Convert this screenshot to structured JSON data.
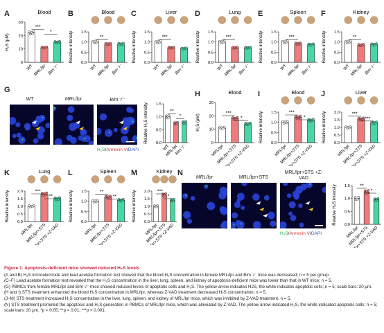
{
  "panels": {
    "A": {
      "label": "A",
      "title": "Blood",
      "ylabel": "H₂S (μM)",
      "yticks": [
        "0",
        "10",
        "20",
        "30"
      ],
      "xticks": [
        "WT",
        "MRL/lpr",
        "Bim⁻/⁻"
      ],
      "sig": [
        "***",
        "*"
      ]
    },
    "B": {
      "label": "B",
      "title": "Blood",
      "ylabel": "Relative intensity",
      "yticks": [
        "0.0",
        "0.5",
        "1.0",
        "1.5"
      ],
      "xticks": [
        "WT",
        "MRL/lpr",
        "Bim⁻/⁻"
      ],
      "sig": [
        "**"
      ]
    },
    "C": {
      "label": "C",
      "title": "Liver",
      "ylabel": "Relative intensity",
      "yticks": [
        "0.0",
        "0.5",
        "1.0",
        "1.5"
      ],
      "xticks": [
        "WT",
        "MRL/lpr",
        "Bim⁻/⁻"
      ],
      "sig": [
        "***"
      ]
    },
    "D": {
      "label": "D",
      "title": "Lung",
      "ylabel": "Relative intensity",
      "yticks": [
        "0.0",
        "0.5",
        "1.0",
        "1.5"
      ],
      "xticks": [
        "WT",
        "MRL/lpr",
        "Bim⁻/⁻"
      ],
      "sig": [
        "***"
      ]
    },
    "E": {
      "label": "E",
      "title": "Spleen",
      "ylabel": "Relative intensity",
      "yticks": [
        "0.0",
        "0.5",
        "1.0",
        "1.5"
      ],
      "xticks": [
        "WT",
        "MRL/lpr",
        "Bim⁻/⁻"
      ],
      "sig": [
        "***"
      ]
    },
    "F": {
      "label": "F",
      "title": "Kidney",
      "ylabel": "Relative intensity",
      "yticks": [
        "0.0",
        "0.5",
        "1.0",
        "1.5"
      ],
      "xticks": [
        "WT",
        "MRL/lpr",
        "Bim⁻/⁻"
      ],
      "sig": [
        "**"
      ]
    },
    "G": {
      "label": "G",
      "images": [
        "WT",
        "MRL/lpr",
        "Bim⁻/⁻"
      ],
      "legend_h2s": "H₂S",
      "legend_annexin": "Annexin V",
      "legend_dapi": "DAPI",
      "ylabel": "Relative H₂S intensity",
      "yticks": [
        "0.0",
        "0.5",
        "1.0",
        "1.5"
      ],
      "xticks": [
        "WT",
        "MRL/lpr",
        "Bim⁻/⁻"
      ],
      "sig": [
        "**",
        "*"
      ]
    },
    "H": {
      "label": "H",
      "title": "Blood",
      "ylabel": "H₂S (μM)",
      "yticks": [
        "0",
        "10",
        "20",
        "30"
      ],
      "xticks": [
        "MRL/lpr",
        "MRL/lpr+STS",
        "MRL/lpr+STS +Z-VAD"
      ],
      "sig": [
        "***",
        "*"
      ]
    },
    "I": {
      "label": "I",
      "title": "Blood",
      "ylabel": "Relative intensity",
      "yticks": [
        "0.0",
        "0.5",
        "1.0",
        "1.5"
      ],
      "xticks": [
        "MRL/lpr",
        "MRL/lpr+STS",
        "MRL/lpr+STS +Z-VAD"
      ],
      "sig": [
        "***",
        "*"
      ]
    },
    "J": {
      "label": "J",
      "title": "Liver",
      "ylabel": "Relative intensity",
      "yticks": [
        "0.0",
        "0.5",
        "1.0",
        "1.5",
        "2.0"
      ],
      "xticks": [
        "MRL/lpr",
        "MRL/lpr+STS",
        "MRL/lpr+STS +Z-VAD"
      ],
      "sig": [
        "***",
        "***"
      ]
    },
    "K": {
      "label": "K",
      "title": "Lung",
      "ylabel": "Relative intensity",
      "yticks": [
        "0.0",
        "0.5",
        "1.0",
        "1.5",
        "2.0"
      ],
      "xticks": [
        "MRL/lpr",
        "MRL/lpr+STS",
        "MRL/lpr+STS +Z-VAD"
      ],
      "sig": [
        "***",
        "**"
      ]
    },
    "L": {
      "label": "L",
      "title": "Spleen",
      "ylabel": "Relative intensity",
      "yticks": [
        "0.0",
        "0.5",
        "1.0",
        "1.5"
      ],
      "xticks": [
        "MRL/lpr",
        "MRL/lpr+STS",
        "MRL/lpr+STS +Z-VAD"
      ],
      "sig": [
        "**",
        "**"
      ]
    },
    "M": {
      "label": "M",
      "title": "Kidney",
      "ylabel": "Relative intensity",
      "yticks": [
        "0.0",
        "0.5",
        "1.0",
        "1.5",
        "2.0"
      ],
      "xticks": [
        "MRL/lpr",
        "MRL/lpr+STS",
        "MRL/lpr+STS +Z-VAD"
      ],
      "sig": [
        "***",
        "*"
      ]
    },
    "N": {
      "label": "N",
      "images": [
        "MRL/lpr",
        "MRL/lpr+STS",
        "MRL/lpr+STS +Z-VAD"
      ],
      "legend_h2s": "H₂S",
      "legend_annexin": "Annexin V",
      "legend_dapi": "DAPI",
      "ylabel": "Relative H₂S intensity",
      "yticks": [
        "0.0",
        "0.5",
        "1.0",
        "1.5"
      ],
      "xticks": [
        "MRL/lpr",
        "MRL/lpr+STS",
        "MRL/lpr+STS +Z-VAD"
      ],
      "sig": [
        "**",
        "*"
      ]
    }
  },
  "colors": {
    "wt": "#ffffff",
    "mrl": "#ef7b7b",
    "bim": "#48d6a4",
    "sts": "#ef7b7b",
    "zvad": "#48d6a4",
    "caption_title": "#c8243b"
  },
  "chart_data": [
    {
      "panel": "A",
      "type": "bar",
      "categories": [
        "WT",
        "MRL/lpr",
        "Bim-/-"
      ],
      "values": [
        22,
        11,
        15
      ],
      "ylim": [
        0,
        30
      ],
      "title": "Blood",
      "ylabel": "H2S (μM)"
    },
    {
      "panel": "B",
      "type": "bar",
      "categories": [
        "WT",
        "MRL/lpr",
        "Bim-/-"
      ],
      "values": [
        1.0,
        0.9,
        0.9
      ],
      "ylim": [
        0,
        1.5
      ],
      "title": "Blood",
      "ylabel": "Relative intensity"
    },
    {
      "panel": "C",
      "type": "bar",
      "categories": [
        "WT",
        "MRL/lpr",
        "Bim-/-"
      ],
      "values": [
        1.0,
        0.72,
        0.68
      ],
      "ylim": [
        0,
        1.5
      ],
      "title": "Liver",
      "ylabel": "Relative intensity"
    },
    {
      "panel": "D",
      "type": "bar",
      "categories": [
        "WT",
        "MRL/lpr",
        "Bim-/-"
      ],
      "values": [
        1.0,
        0.72,
        0.72
      ],
      "ylim": [
        0,
        1.5
      ],
      "title": "Lung",
      "ylabel": "Relative intensity"
    },
    {
      "panel": "E",
      "type": "bar",
      "categories": [
        "WT",
        "MRL/lpr",
        "Bim-/-"
      ],
      "values": [
        1.0,
        0.92,
        0.87
      ],
      "ylim": [
        0,
        1.5
      ],
      "title": "Spleen",
      "ylabel": "Relative intensity"
    },
    {
      "panel": "F",
      "type": "bar",
      "categories": [
        "WT",
        "MRL/lpr",
        "Bim-/-"
      ],
      "values": [
        1.0,
        0.85,
        0.88
      ],
      "ylim": [
        0,
        1.5
      ],
      "title": "Kidney",
      "ylabel": "Relative intensity"
    },
    {
      "panel": "G",
      "type": "bar",
      "categories": [
        "WT",
        "MRL/lpr",
        "Bim-/-"
      ],
      "values": [
        1.0,
        0.75,
        0.78
      ],
      "ylim": [
        0,
        1.5
      ],
      "ylabel": "Relative H2S intensity"
    },
    {
      "panel": "H",
      "type": "bar",
      "categories": [
        "MRL/lpr",
        "MRL/lpr+STS",
        "MRL/lpr+STS +Z-VAD"
      ],
      "values": [
        11,
        18,
        14
      ],
      "ylim": [
        0,
        30
      ],
      "title": "Blood",
      "ylabel": "H2S (μM)"
    },
    {
      "panel": "I",
      "type": "bar",
      "categories": [
        "MRL/lpr",
        "MRL/lpr+STS",
        "MRL/lpr+STS +Z-VAD"
      ],
      "values": [
        1.0,
        1.25,
        1.1
      ],
      "ylim": [
        0,
        1.5
      ],
      "title": "Blood",
      "ylabel": "Relative intensity"
    },
    {
      "panel": "J",
      "type": "bar",
      "categories": [
        "MRL/lpr",
        "MRL/lpr+STS",
        "MRL/lpr+STS +Z-VAD"
      ],
      "values": [
        1.0,
        1.55,
        1.3
      ],
      "ylim": [
        0,
        2.0
      ],
      "title": "Liver",
      "ylabel": "Relative intensity"
    },
    {
      "panel": "K",
      "type": "bar",
      "categories": [
        "MRL/lpr",
        "MRL/lpr+STS",
        "MRL/lpr+STS +Z-VAD"
      ],
      "values": [
        1.0,
        1.8,
        1.5
      ],
      "ylim": [
        0,
        2.0
      ],
      "title": "Lung",
      "ylabel": "Relative intensity"
    },
    {
      "panel": "L",
      "type": "bar",
      "categories": [
        "MRL/lpr",
        "MRL/lpr+STS",
        "MRL/lpr+STS +Z-VAD"
      ],
      "values": [
        1.0,
        1.2,
        1.05
      ],
      "ylim": [
        0,
        1.5
      ],
      "title": "Spleen",
      "ylabel": "Relative intensity"
    },
    {
      "panel": "M",
      "type": "bar",
      "categories": [
        "MRL/lpr",
        "MRL/lpr+STS",
        "MRL/lpr+STS +Z-VAD"
      ],
      "values": [
        1.0,
        1.75,
        1.4
      ],
      "ylim": [
        0,
        2.0
      ],
      "title": "Kidney",
      "ylabel": "Relative intensity"
    },
    {
      "panel": "N",
      "type": "bar",
      "categories": [
        "MRL/lpr",
        "MRL/lpr+STS",
        "MRL/lpr+STS +Z-VAD"
      ],
      "values": [
        1.0,
        1.25,
        0.95
      ],
      "ylim": [
        0,
        1.5
      ],
      "ylabel": "Relative H2S intensity"
    }
  ],
  "caption": {
    "title": "Figure 1.  Apoptosis-deficient mice showed reduced H₂S levels",
    "lines": [
      "(A and B) H₂S microelectrode and lead acetate formation test showed that the blood H₂S concentration in female MRL/lpr and Bim⁻/⁻ mice was decreased; n = 5 per group.",
      "(C–F) Lead acetate formation test revealed that the H₂S concentration in the liver, lung, spleen, and kidney of apoptosis-deficient mice was lower than that in WT mice; n = 5.",
      "(G) PBMCs from female MRL/lpr and Bim⁻/⁻ mice showed reduced levels of apoptotic cells and H₂S. The yellow arrow indicates H2S, the white indicates apoptotic cells; n = 5; scale bars: 20 μm.",
      "(H and I) STS treatment enhanced the blood H₂S concentration in MRL/lpr, whereas Z-VAD treatment decreased H₂S concentration; n = 5.",
      "(J–M) STS treatment increased H₂S concentration in the liver, lung, spleen, and kidney of MRL/lpr mice, which was inhibited by Z-VAD treatment. n = 5.",
      "(N) STS treatment promoted the apoptosis and H₂S generation in PBMCs of MRL/lpr mice, which was alleviated by Z-VAD. The yellow arrow indicated H₂S, the white indicated apoptotic cells; n = 5; scale bars: 20 μm. *p < 0.05; **p < 0.01; ***p < 0.001."
    ]
  }
}
